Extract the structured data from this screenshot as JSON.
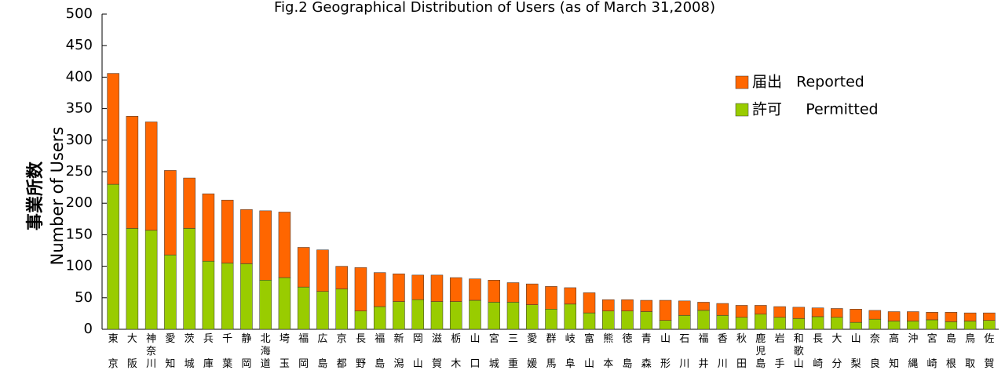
{
  "chart_data": {
    "type": "stacked_bar",
    "title": "Fig.2 Geographical Distribution of Users (as of March 31,2008)",
    "ylabel": [
      "事業所数",
      "Number of Users"
    ],
    "categories": [
      "東京",
      "大阪",
      "神奈川",
      "愛知",
      "茨城",
      "兵庫",
      "千葉",
      "静岡",
      "北海道",
      "埼玉",
      "福岡",
      "広島",
      "京都",
      "長野",
      "福島",
      "新潟",
      "岡山",
      "滋賀",
      "栃木",
      "山口",
      "宮城",
      "三重",
      "愛媛",
      "群馬",
      "岐阜",
      "富山",
      "熊本",
      "徳島",
      "青森",
      "山形",
      "石川",
      "福井",
      "香川",
      "秋田",
      "鹿児島",
      "岩手",
      "和歌山",
      "長崎",
      "大分",
      "山梨",
      "奈良",
      "高知",
      "沖縄",
      "宮崎",
      "島根",
      "鳥取",
      "佐賀"
    ],
    "series": [
      {
        "name": "許可     Permitted",
        "color": "#99cc00",
        "values": [
          230,
          160,
          157,
          118,
          160,
          108,
          105,
          104,
          78,
          82,
          67,
          60,
          64,
          29,
          36,
          44,
          47,
          44,
          44,
          46,
          43,
          43,
          39,
          32,
          40,
          26,
          29,
          29,
          28,
          14,
          22,
          30,
          22,
          19,
          24,
          19,
          17,
          20,
          19,
          11,
          16,
          13,
          13,
          15,
          12,
          13,
          14
        ]
      },
      {
        "name": "届出   Reported",
        "color": "#ff6600",
        "values": [
          176,
          178,
          172,
          134,
          80,
          107,
          100,
          86,
          110,
          104,
          63,
          66,
          36,
          69,
          54,
          44,
          39,
          42,
          38,
          34,
          35,
          31,
          33,
          36,
          26,
          32,
          18,
          18,
          18,
          32,
          23,
          13,
          19,
          19,
          14,
          17,
          18,
          14,
          14,
          21,
          14,
          15,
          15,
          12,
          15,
          13,
          12
        ]
      }
    ],
    "ylim": [
      0,
      500
    ],
    "yticks": [
      0,
      50,
      100,
      150,
      200,
      250,
      300,
      350,
      400,
      450,
      500
    ],
    "legend": "upper right"
  }
}
